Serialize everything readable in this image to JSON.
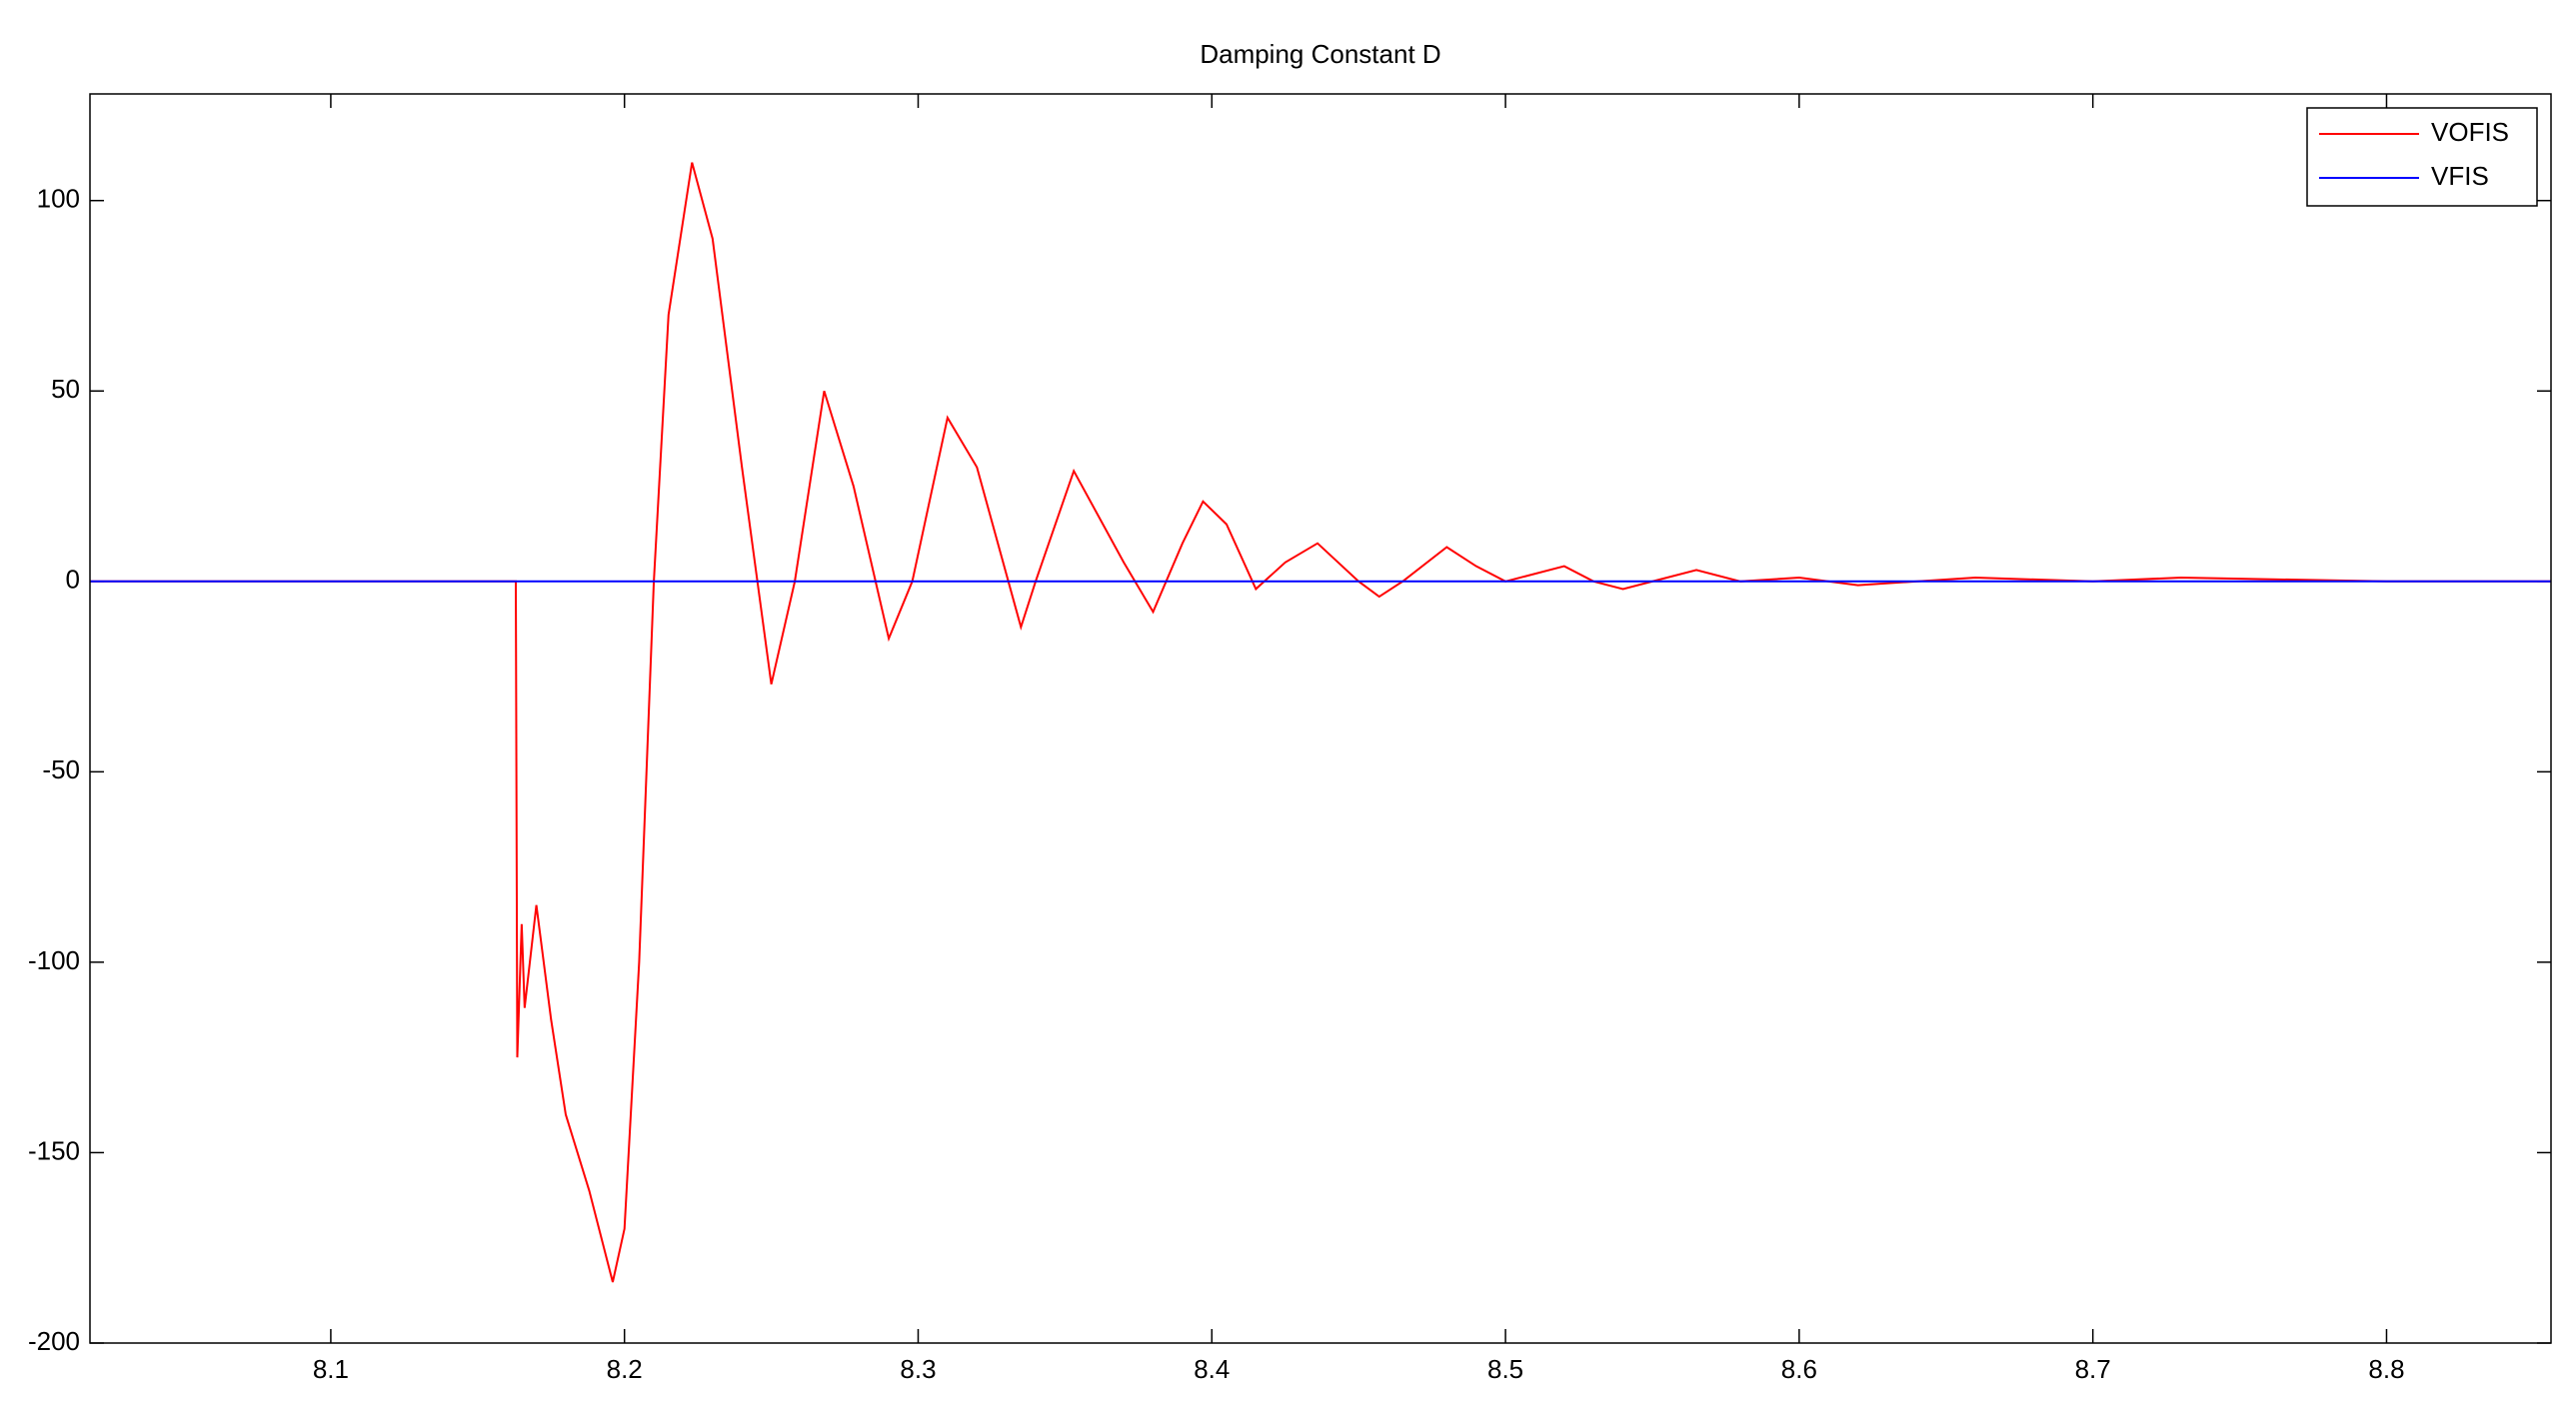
{
  "chart_data": {
    "type": "line",
    "title": "Damping Constant D",
    "xlim": [
      8.018,
      8.856
    ],
    "xticks": [
      8.1,
      8.2,
      8.3,
      8.4,
      8.5,
      8.6,
      8.7,
      8.8
    ],
    "ylim": [
      -200,
      128
    ],
    "yticks": [
      -200,
      -150,
      -100,
      -50,
      0,
      50,
      100
    ],
    "legend": "top-right",
    "series": [
      {
        "name": "VOFIS",
        "color": "#ff0000",
        "x": [
          8.018,
          8.163,
          8.1635,
          8.165,
          8.166,
          8.17,
          8.175,
          8.18,
          8.188,
          8.196,
          8.2,
          8.205,
          8.21,
          8.215,
          8.223,
          8.23,
          8.24,
          8.25,
          8.258,
          8.268,
          8.278,
          8.29,
          8.298,
          8.31,
          8.32,
          8.335,
          8.34,
          8.353,
          8.37,
          8.38,
          8.39,
          8.397,
          8.405,
          8.415,
          8.425,
          8.436,
          8.45,
          8.457,
          8.465,
          8.48,
          8.49,
          8.5,
          8.52,
          8.53,
          8.54,
          8.565,
          8.58,
          8.6,
          8.62,
          8.66,
          8.7,
          8.73,
          8.8,
          8.856
        ],
        "values": [
          0,
          0,
          -125,
          -90,
          -112,
          -85,
          -115,
          -140,
          -160,
          -184,
          -170,
          -100,
          0,
          70,
          110,
          90,
          30,
          -27,
          0,
          50,
          25,
          -15,
          0,
          43,
          30,
          -12,
          0,
          29,
          5,
          -8,
          10,
          21,
          15,
          -2,
          5,
          10,
          0,
          -4,
          0,
          9,
          4,
          0,
          4,
          0,
          -2,
          3,
          0,
          1,
          -1,
          1,
          0,
          1,
          0,
          0
        ]
      },
      {
        "name": "VFIS",
        "color": "#0000ff",
        "x": [
          8.018,
          8.856
        ],
        "values": [
          0,
          0
        ]
      }
    ]
  }
}
